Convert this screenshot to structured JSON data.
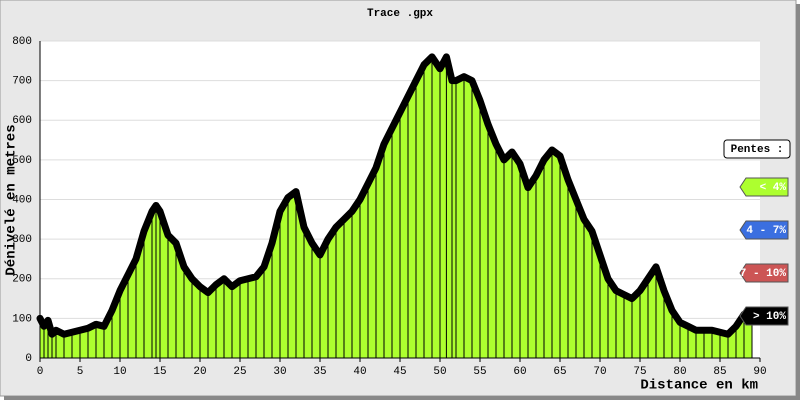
{
  "chart_data": {
    "type": "area",
    "title": "Trace .gpx",
    "ylabel": "Dénivelé en metres",
    "xlabel": "Distance en km",
    "color": "#adff2f",
    "line_color": "#000000",
    "grid": true,
    "xlim": [
      0,
      90
    ],
    "xticks": [
      0,
      5,
      10,
      15,
      20,
      25,
      30,
      35,
      40,
      45,
      50,
      55,
      60,
      65,
      70,
      75,
      80,
      85,
      90
    ],
    "ylim": [
      0,
      800
    ],
    "yticks": [
      0,
      100,
      200,
      300,
      400,
      500,
      600,
      700,
      800
    ],
    "x": [
      0,
      0.5,
      1,
      1.5,
      2,
      3,
      4,
      5,
      6,
      7,
      8,
      9,
      10,
      11,
      12,
      13,
      14,
      14.5,
      15,
      16,
      17,
      18,
      19,
      20,
      21,
      22,
      23,
      24,
      25,
      26,
      27,
      28,
      29,
      30,
      31,
      32,
      33,
      34,
      35,
      36,
      37,
      38,
      39,
      40,
      41,
      42,
      43,
      44,
      45,
      46,
      47,
      48,
      49,
      50,
      50.8,
      51.5,
      52,
      53,
      54,
      55,
      56,
      57,
      58,
      59,
      60,
      61,
      62,
      63,
      64,
      65,
      66,
      67,
      68,
      69,
      70,
      71,
      72,
      73,
      74,
      75,
      76,
      77,
      78,
      79,
      80,
      81,
      82,
      83,
      84,
      85,
      86,
      87,
      88,
      89
    ],
    "values": [
      100,
      80,
      95,
      60,
      70,
      60,
      65,
      70,
      75,
      85,
      80,
      120,
      170,
      210,
      250,
      320,
      370,
      385,
      370,
      310,
      290,
      230,
      200,
      180,
      165,
      185,
      200,
      180,
      195,
      200,
      205,
      230,
      290,
      370,
      405,
      420,
      330,
      290,
      260,
      300,
      330,
      350,
      370,
      400,
      440,
      480,
      540,
      580,
      620,
      660,
      700,
      740,
      760,
      730,
      760,
      700,
      700,
      710,
      700,
      650,
      590,
      540,
      500,
      520,
      490,
      430,
      460,
      500,
      525,
      510,
      450,
      400,
      350,
      320,
      260,
      200,
      170,
      160,
      150,
      170,
      200,
      230,
      170,
      120,
      90,
      80,
      70,
      70,
      70,
      65,
      60,
      80,
      110,
      120
    ],
    "legend": {
      "title": "Pentes :",
      "items": [
        {
          "label": "< 4%",
          "color": "#adff2f"
        },
        {
          "label": "4 - 7%",
          "color": "#3b6fe0"
        },
        {
          "label": "7 - 10%",
          "color": "#cc5555"
        },
        {
          "label": "> 10%",
          "color": "#000000"
        }
      ]
    }
  }
}
